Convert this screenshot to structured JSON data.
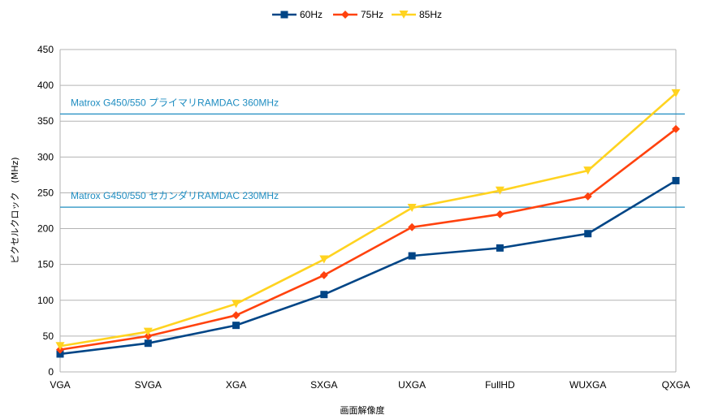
{
  "chart_data": {
    "type": "line",
    "title": "",
    "xlabel": "画面解像度",
    "ylabel": "ピクセルクロック　(MHz)",
    "categories": [
      "VGA",
      "SVGA",
      "XGA",
      "SXGA",
      "UXGA",
      "FullHD",
      "WUXGA",
      "QXGA"
    ],
    "ylim": [
      0,
      450
    ],
    "yticks": [
      0,
      50,
      100,
      150,
      200,
      250,
      300,
      350,
      400,
      450
    ],
    "grid": "horizontal",
    "legend_position": "top-center",
    "series": [
      {
        "name": "60Hz",
        "color": "#004586",
        "marker": "square",
        "values": [
          25,
          40,
          65,
          108,
          162,
          173,
          193,
          267
        ]
      },
      {
        "name": "75Hz",
        "color": "#ff420e",
        "marker": "diamond",
        "values": [
          31,
          50,
          79,
          135,
          202,
          220,
          245,
          339
        ]
      },
      {
        "name": "85Hz",
        "color": "#ffd320",
        "marker": "triangle-down",
        "values": [
          36,
          56,
          95,
          157,
          229,
          253,
          281,
          389
        ]
      }
    ],
    "reference_lines": [
      {
        "label": "Matrox G450/550 プライマリRAMDAC 360MHz",
        "value": 360,
        "color": "#1f8dc1"
      },
      {
        "label": "Matrox G450/550 セカンダリRAMDAC 230MHz",
        "value": 230,
        "color": "#1f8dc1"
      }
    ]
  }
}
